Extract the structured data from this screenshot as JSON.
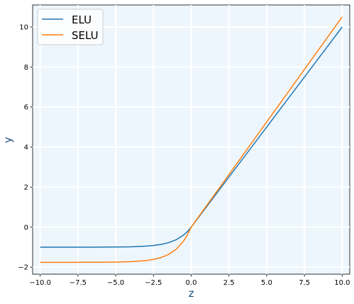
{
  "chart_data": {
    "type": "line",
    "title": "",
    "xlabel": "z",
    "ylabel": "y",
    "xlim": [
      -10.5,
      10.5
    ],
    "ylim": [
      -2.35,
      11.1
    ],
    "x_ticks": [
      -10.0,
      -7.5,
      -5.0,
      -2.5,
      0.0,
      2.5,
      5.0,
      7.5,
      10.0
    ],
    "x_tick_labels": [
      "−10.0",
      "−7.5",
      "−5.0",
      "−2.5",
      "0.0",
      "2.5",
      "5.0",
      "7.5",
      "10.0"
    ],
    "y_ticks": [
      -2,
      0,
      2,
      4,
      6,
      8,
      10
    ],
    "y_tick_labels": [
      "−2",
      "0",
      "2",
      "4",
      "6",
      "8",
      "10"
    ],
    "grid": true,
    "legend_position": "top-left",
    "x": [
      -10,
      -9,
      -8,
      -7,
      -6,
      -5,
      -4,
      -3,
      -2.5,
      -2,
      -1.5,
      -1,
      -0.5,
      -0.25,
      0,
      2.5,
      5,
      7.5,
      10
    ],
    "series": [
      {
        "name": "ELU",
        "color": "#1f77b4",
        "values": [
          -1.0,
          -1.0,
          -1.0,
          -1.0,
          -0.998,
          -0.993,
          -0.982,
          -0.95,
          -0.918,
          -0.865,
          -0.777,
          -0.632,
          -0.393,
          -0.221,
          0.0,
          2.5,
          5.0,
          7.5,
          10.0
        ]
      },
      {
        "name": "SELU",
        "color": "#ff7f0e",
        "values": [
          -1.758,
          -1.758,
          -1.758,
          -1.756,
          -1.754,
          -1.746,
          -1.726,
          -1.671,
          -1.614,
          -1.52,
          -1.366,
          -1.111,
          -0.692,
          -0.389,
          0.0,
          2.627,
          5.254,
          7.881,
          10.507
        ]
      }
    ]
  },
  "style": {
    "plot_background": "#eef6fd",
    "grid_color": "#ffffff",
    "axis_label_color": "#1f4e79"
  }
}
